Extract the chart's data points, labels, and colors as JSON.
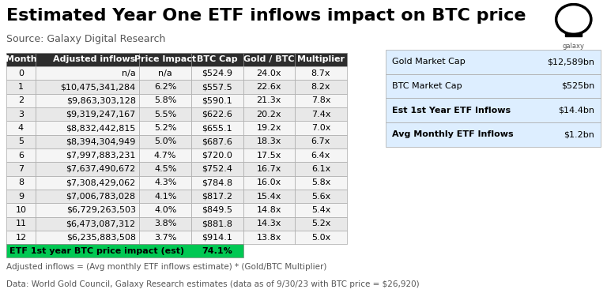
{
  "title": "Estimated Year One ETF inflows impact on BTC price",
  "source": "Source: Galaxy Digital Research",
  "footnote1": "Adjusted inflows = (Avg monthly ETF inflows estimate) * (Gold/BTC Multiplier)",
  "footnote2": "Data: World Gold Council, Galaxy Research estimates (data as of 9/30/23 with BTC price = $26,920)",
  "main_table": {
    "headers": [
      "Month",
      "Adjusted inflows",
      "Price Impact",
      "BTC Cap",
      "Gold / BTC",
      "Multiplier"
    ],
    "rows": [
      [
        "0",
        "n/a",
        "n/a",
        "$524.9",
        "24.0x",
        "8.7x"
      ],
      [
        "1",
        "$10,475,341,284",
        "6.2%",
        "$557.5",
        "22.6x",
        "8.2x"
      ],
      [
        "2",
        "$9,863,303,128",
        "5.8%",
        "$590.1",
        "21.3x",
        "7.8x"
      ],
      [
        "3",
        "$9,319,247,167",
        "5.5%",
        "$622.6",
        "20.2x",
        "7.4x"
      ],
      [
        "4",
        "$8,832,442,815",
        "5.2%",
        "$655.1",
        "19.2x",
        "7.0x"
      ],
      [
        "5",
        "$8,394,304,949",
        "5.0%",
        "$687.6",
        "18.3x",
        "6.7x"
      ],
      [
        "6",
        "$7,997,883,231",
        "4.7%",
        "$720.0",
        "17.5x",
        "6.4x"
      ],
      [
        "7",
        "$7,637,490,672",
        "4.5%",
        "$752.4",
        "16.7x",
        "6.1x"
      ],
      [
        "8",
        "$7,308,429,062",
        "4.3%",
        "$784.8",
        "16.0x",
        "5.8x"
      ],
      [
        "9",
        "$7,006,783,028",
        "4.1%",
        "$817.2",
        "15.4x",
        "5.6x"
      ],
      [
        "10",
        "$6,729,263,503",
        "4.0%",
        "$849.5",
        "14.8x",
        "5.4x"
      ],
      [
        "11",
        "$6,473,087,312",
        "3.8%",
        "$881.8",
        "14.3x",
        "5.2x"
      ],
      [
        "12",
        "$6,235,883,508",
        "3.7%",
        "$914.1",
        "13.8x",
        "5.0x"
      ]
    ],
    "footer_label": "ETF 1st year BTC price impact (est)",
    "footer_value": "74.1%",
    "footer_bg": "#00c853",
    "footer_text_color": "#000000"
  },
  "side_table": {
    "rows": [
      [
        "Gold Market Cap",
        "$12,589bn"
      ],
      [
        "BTC Market Cap",
        "$525bn"
      ],
      [
        "Est 1st Year ETF Inflows",
        "$14.4bn"
      ],
      [
        "Avg Monthly ETF Inflows",
        "$1.2bn"
      ]
    ],
    "bg_color": "#ddeeff"
  },
  "header_bg": "#2d2d2d",
  "header_text_color": "#ffffff",
  "odd_row_bg": "#f5f5f5",
  "even_row_bg": "#e8e8e8",
  "table_border_color": "#555555",
  "title_fontsize": 16,
  "source_fontsize": 9,
  "footnote_fontsize": 7.5,
  "header_fontsize": 8,
  "cell_fontsize": 8,
  "side_fontsize": 8
}
